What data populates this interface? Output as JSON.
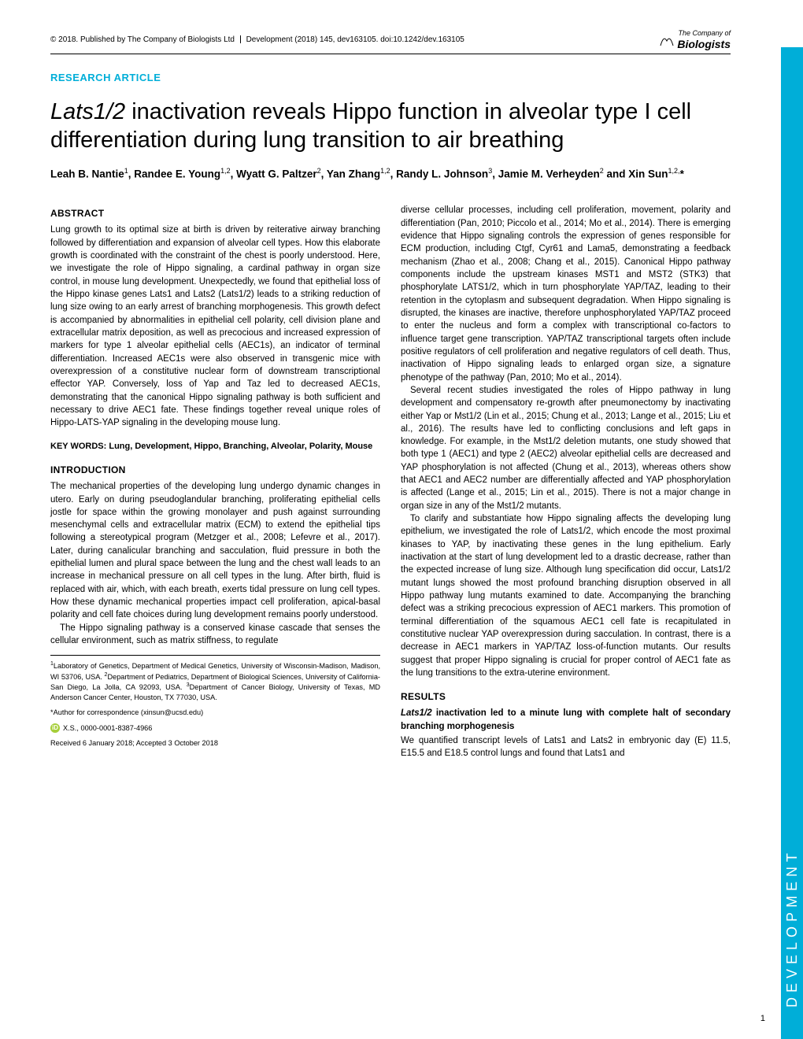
{
  "header": {
    "copyright_left": "© 2018. Published by The Company of Biologists Ltd",
    "copyright_right": "Development (2018) 145, dev163105. doi:10.1242/dev.163105",
    "logo_top": "The Company of",
    "logo_bottom": "Biologists"
  },
  "article_type": "RESEARCH ARTICLE",
  "title_pre": "Lats1/2",
  "title_rest": " inactivation reveals Hippo function in alveolar type I cell differentiation during lung transition to air breathing",
  "authors_html": "Leah B. Nantie<sup>1</sup>, Randee E. Young<sup>1,2</sup>, Wyatt G. Paltzer<sup>2</sup>, Yan Zhang<sup>1,2</sup>, Randy L. Johnson<sup>3</sup>, Jamie M. Verheyden<sup>2</sup> and Xin Sun<sup>1,2,</sup>*",
  "abstract_head": "ABSTRACT",
  "abstract_text": "Lung growth to its optimal size at birth is driven by reiterative airway branching followed by differentiation and expansion of alveolar cell types. How this elaborate growth is coordinated with the constraint of the chest is poorly understood. Here, we investigate the role of Hippo signaling, a cardinal pathway in organ size control, in mouse lung development. Unexpectedly, we found that epithelial loss of the Hippo kinase genes Lats1 and Lats2 (Lats1/2) leads to a striking reduction of lung size owing to an early arrest of branching morphogenesis. This growth defect is accompanied by abnormalities in epithelial cell polarity, cell division plane and extracellular matrix deposition, as well as precocious and increased expression of markers for type 1 alveolar epithelial cells (AEC1s), an indicator of terminal differentiation. Increased AEC1s were also observed in transgenic mice with overexpression of a constitutive nuclear form of downstream transcriptional effector YAP. Conversely, loss of Yap and Taz led to decreased AEC1s, demonstrating that the canonical Hippo signaling pathway is both sufficient and necessary to drive AEC1 fate. These findings together reveal unique roles of Hippo-LATS-YAP signaling in the developing mouse lung.",
  "keywords": "KEY WORDS: Lung, Development, Hippo, Branching, Alveolar, Polarity, Mouse",
  "intro_head": "INTRODUCTION",
  "intro_p1": "The mechanical properties of the developing lung undergo dynamic changes in utero. Early on during pseudoglandular branching, proliferating epithelial cells jostle for space within the growing monolayer and push against surrounding mesenchymal cells and extracellular matrix (ECM) to extend the epithelial tips following a stereotypical program (Metzger et al., 2008; Lefevre et al., 2017). Later, during canalicular branching and sacculation, fluid pressure in both the epithelial lumen and plural space between the lung and the chest wall leads to an increase in mechanical pressure on all cell types in the lung. After birth, fluid is replaced with air, which, with each breath, exerts tidal pressure on lung cell types. How these dynamic mechanical properties impact cell proliferation, apical-basal polarity and cell fate choices during lung development remains poorly understood.",
  "intro_p2": "The Hippo signaling pathway is a conserved kinase cascade that senses the cellular environment, such as matrix stiffness, to regulate",
  "col2_p1": "diverse cellular processes, including cell proliferation, movement, polarity and differentiation (Pan, 2010; Piccolo et al., 2014; Mo et al., 2014). There is emerging evidence that Hippo signaling controls the expression of genes responsible for ECM production, including Ctgf, Cyr61 and Lama5, demonstrating a feedback mechanism (Zhao et al., 2008; Chang et al., 2015). Canonical Hippo pathway components include the upstream kinases MST1 and MST2 (STK3) that phosphorylate LATS1/2, which in turn phosphorylate YAP/TAZ, leading to their retention in the cytoplasm and subsequent degradation. When Hippo signaling is disrupted, the kinases are inactive, therefore unphosphorylated YAP/TAZ proceed to enter the nucleus and form a complex with transcriptional co-factors to influence target gene transcription. YAP/TAZ transcriptional targets often include positive regulators of cell proliferation and negative regulators of cell death. Thus, inactivation of Hippo signaling leads to enlarged organ size, a signature phenotype of the pathway (Pan, 2010; Mo et al., 2014).",
  "col2_p2": "Several recent studies investigated the roles of Hippo pathway in lung development and compensatory re-growth after pneumonectomy by inactivating either Yap or Mst1/2 (Lin et al., 2015; Chung et al., 2013; Lange et al., 2015; Liu et al., 2016). The results have led to conflicting conclusions and left gaps in knowledge. For example, in the Mst1/2 deletion mutants, one study showed that both type 1 (AEC1) and type 2 (AEC2) alveolar epithelial cells are decreased and YAP phosphorylation is not affected (Chung et al., 2013), whereas others show that AEC1 and AEC2 number are differentially affected and YAP phosphorylation is affected (Lange et al., 2015; Lin et al., 2015). There is not a major change in organ size in any of the Mst1/2 mutants.",
  "col2_p3": "To clarify and substantiate how Hippo signaling affects the developing lung epithelium, we investigated the role of Lats1/2, which encode the most proximal kinases to YAP, by inactivating these genes in the lung epithelium. Early inactivation at the start of lung development led to a drastic decrease, rather than the expected increase of lung size. Although lung specification did occur, Lats1/2 mutant lungs showed the most profound branching disruption observed in all Hippo pathway lung mutants examined to date. Accompanying the branching defect was a striking precocious expression of AEC1 markers. This promotion of terminal differentiation of the squamous AEC1 cell fate is recapitulated in constitutive nuclear YAP overexpression during sacculation. In contrast, there is a decrease in AEC1 markers in YAP/TAZ loss-of-function mutants. Our results suggest that proper Hippo signaling is crucial for proper control of AEC1 fate as the lung transitions to the extra-uterine environment.",
  "results_head": "RESULTS",
  "results_sub_pre": "Lats1/2",
  "results_sub_rest": " inactivation led to a minute lung with complete halt of secondary branching morphogenesis",
  "results_p1": "We quantified transcript levels of Lats1 and Lats2 in embryonic day (E) 11.5, E15.5 and E18.5 control lungs and found that Lats1 and",
  "affil1": "Laboratory of Genetics, Department of Medical Genetics, University of Wisconsin-Madison, Madison, WI 53706, USA. ",
  "affil2": "Department of Pediatrics, Department of Biological Sciences, University of California-San Diego, La Jolla, CA 92093, USA. ",
  "affil3": "Department of Cancer Biology, University of Texas, MD Anderson Cancer Center, Houston, TX 77030, USA.",
  "corr": "*Author for correspondence (xinsun@ucsd.edu)",
  "orcid": "X.S., 0000-0001-8387-4966",
  "dates": "Received 6 January 2018; Accepted 3 October 2018",
  "sidebar": "DEVELOPMENT",
  "page_num": "1"
}
